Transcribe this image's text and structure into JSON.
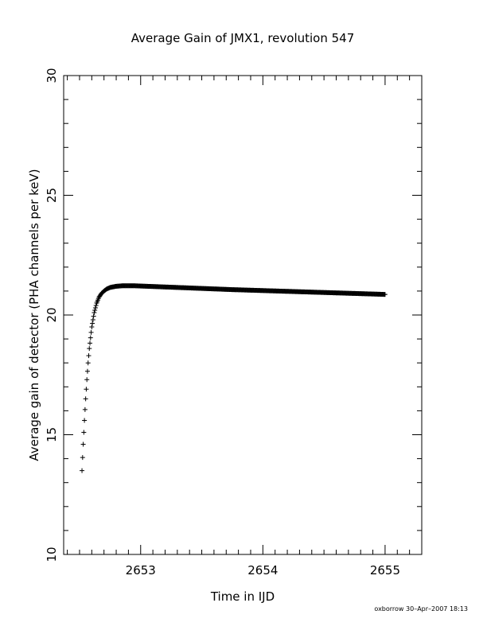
{
  "chart_data": {
    "type": "scatter",
    "title": "Average Gain of JMX1, revolution 547",
    "xlabel": "Time in IJD",
    "ylabel": "Average gain of detector (PHA channels per keV)",
    "xlim": [
      2652.37,
      2655.3
    ],
    "ylim": [
      10,
      30
    ],
    "xticks": [
      2653,
      2654,
      2655
    ],
    "xtick_labels": [
      "2653",
      "2654",
      "2655"
    ],
    "yticks": [
      10,
      15,
      20,
      25,
      30
    ],
    "ytick_labels": [
      "10",
      "15",
      "20",
      "25",
      "30"
    ],
    "grid": false,
    "marker": "plus",
    "series": [
      {
        "x": [
          2652.52,
          2652.53,
          2652.54,
          2652.55,
          2652.56,
          2652.57,
          2652.58,
          2652.6,
          2652.62,
          2652.64,
          2652.66,
          2652.68,
          2652.7,
          2652.72,
          2652.75,
          2652.78,
          2652.8,
          2652.85,
          2652.9,
          2652.95,
          2653.0,
          2653.1,
          2653.2,
          2653.3,
          2653.5,
          2653.75,
          2654.0,
          2654.25,
          2654.5,
          2654.75,
          2655.0
        ],
        "y": [
          13.5,
          14.6,
          15.6,
          16.5,
          17.3,
          18.0,
          18.6,
          19.5,
          20.1,
          20.5,
          20.75,
          20.9,
          21.0,
          21.08,
          21.15,
          21.18,
          21.2,
          21.22,
          21.22,
          21.22,
          21.21,
          21.19,
          21.17,
          21.15,
          21.11,
          21.06,
          21.02,
          20.98,
          20.94,
          20.9,
          20.86
        ]
      }
    ]
  },
  "footer": "oxborrow 30–Apr–2007 18:13"
}
